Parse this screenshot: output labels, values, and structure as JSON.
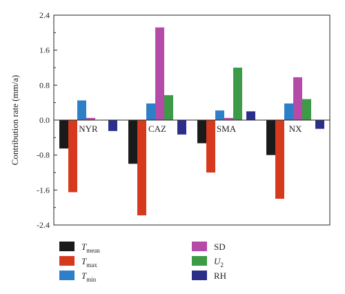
{
  "chart_data": {
    "type": "bar",
    "title": "",
    "xlabel": "",
    "ylabel": "Contribution rate (mm/a)",
    "ylim": [
      -2.4,
      2.4
    ],
    "yticks": [
      "-2.4",
      "-1.6",
      "-0.8",
      "0.0",
      "0.8",
      "1.6",
      "2.4"
    ],
    "categories": [
      "NYR",
      "CAZ",
      "SMA",
      "NX"
    ],
    "grid": false,
    "legend_position": "bottom",
    "series": [
      {
        "name": "Tmean",
        "label_main": "T",
        "label_sub": "mean",
        "italic": true,
        "color": "#1a1a1a",
        "values": [
          -0.65,
          -1.0,
          -0.53,
          -0.8
        ]
      },
      {
        "name": "Tmax",
        "label_main": "T",
        "label_sub": "max",
        "italic": true,
        "color": "#d63a1e",
        "values": [
          -1.65,
          -2.18,
          -1.2,
          -1.8
        ]
      },
      {
        "name": "Tmin",
        "label_main": "T",
        "label_sub": "min",
        "italic": true,
        "color": "#2e7ec8",
        "values": [
          0.45,
          0.38,
          0.22,
          0.38
        ]
      },
      {
        "name": "SD",
        "label_main": "SD",
        "label_sub": "",
        "italic": false,
        "color": "#b54ba8",
        "values": [
          0.05,
          2.12,
          0.05,
          0.98
        ]
      },
      {
        "name": "U2",
        "label_main": "U",
        "label_sub": "2",
        "italic": true,
        "color": "#3d9a46",
        "values": [
          0.0,
          0.57,
          1.2,
          0.48
        ]
      },
      {
        "name": "RH",
        "label_main": "RH",
        "label_sub": "",
        "italic": false,
        "color": "#2b2f8a",
        "values": [
          -0.25,
          -0.33,
          0.2,
          -0.2
        ]
      }
    ],
    "legend_order": [
      "Tmean",
      "SD",
      "Tmax",
      "U2",
      "Tmin",
      "RH"
    ]
  }
}
